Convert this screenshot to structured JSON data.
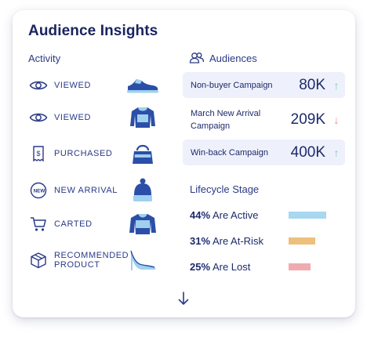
{
  "card": {
    "title": "Audience Insights",
    "activity_heading": "Activity",
    "audiences_heading": "Audiences",
    "lifecycle_heading": "Lifecycle Stage"
  },
  "activity": [
    {
      "label": "VIEWED",
      "icon": "eye-icon",
      "product": "sneaker"
    },
    {
      "label": "VIEWED",
      "icon": "eye-icon",
      "product": "sweater"
    },
    {
      "label": "PURCHASED",
      "icon": "receipt-icon",
      "product": "handbag"
    },
    {
      "label": "NEW ARRIVAL",
      "icon": "new-badge-icon",
      "product": "beanie"
    },
    {
      "label": "CARTED",
      "icon": "cart-icon",
      "product": "sweater"
    },
    {
      "label": "RECOMMENDED PRODUCT",
      "icon": "box-icon",
      "product": "high-heel"
    }
  ],
  "audiences": [
    {
      "name": "Non-buyer Campaign",
      "value": "80K",
      "trend": "up",
      "arrow": "↑",
      "shaded": true
    },
    {
      "name": "March New Arrival Campaign",
      "value": "209K",
      "trend": "down",
      "arrow": "↓",
      "shaded": false
    },
    {
      "name": "Win-back Campaign",
      "value": "400K",
      "trend": "up",
      "arrow": "↑",
      "shaded": true
    }
  ],
  "lifecycle": [
    {
      "percent": "44%",
      "label": "Are Active",
      "share": 0.44,
      "color": "#a8d7f0"
    },
    {
      "percent": "31%",
      "label": "Are At-Risk",
      "share": 0.31,
      "color": "#edc07c"
    },
    {
      "percent": "25%",
      "label": "Are Lost",
      "share": 0.25,
      "color": "#f1aab0"
    }
  ],
  "colors": {
    "navy": "#1d2a6b",
    "trend_up": "#7fcf9a",
    "trend_down": "#e48a8a",
    "product_blue": "#2b4fa8",
    "product_light": "#9fd0ee"
  }
}
